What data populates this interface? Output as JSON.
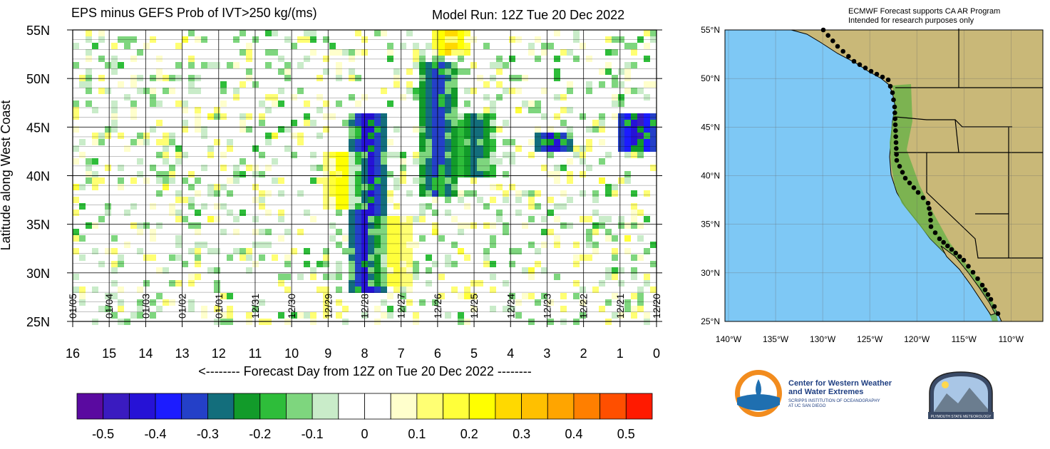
{
  "header": {
    "title": "EPS minus GEFS Prob of IVT>250 kg/(ms)",
    "model_run": "Model Run: 12Z Tue 20 Dec 2022"
  },
  "chart_data": {
    "type": "heatmap",
    "title": "EPS minus GEFS Prob of IVT>250 kg/(ms)",
    "xlabel": "<-------- Forecast Day from 12Z on Tue 20 Dec 2022 --------",
    "ylabel": "Latitude along West Coast",
    "x_ticks": [
      "16",
      "15",
      "14",
      "13",
      "12",
      "11",
      "10",
      "9",
      "8",
      "7",
      "6",
      "5",
      "4",
      "3",
      "2",
      "1",
      "0"
    ],
    "xlim": [
      16,
      0
    ],
    "y_ticks": [
      "55N",
      "50N",
      "45N",
      "40N",
      "35N",
      "30N",
      "25N"
    ],
    "ylim": [
      25,
      55
    ],
    "date_labels": [
      "01/05",
      "01/04",
      "01/03",
      "01/02",
      "01/01",
      "12/31",
      "12/30",
      "12/29",
      "12/28",
      "12/27",
      "12/26",
      "12/25",
      "12/24",
      "12/23",
      "12/22",
      "12/21",
      "12/20"
    ],
    "colorbar": {
      "labels": [
        "-0.5",
        "-0.4",
        "-0.3",
        "-0.2",
        "-0.1",
        "0",
        "0.1",
        "0.2",
        "0.3",
        "0.4",
        "0.5"
      ],
      "colors": [
        "#5a0aa0",
        "#3a1bc0",
        "#2612d6",
        "#1c1cff",
        "#2440c8",
        "#136e7c",
        "#129b2a",
        "#2ebd3a",
        "#7ed67e",
        "#c9ecc9",
        "#ffffff",
        "#ffffff",
        "#ffffcc",
        "#ffff73",
        "#ffff3a",
        "#ffff00",
        "#ffd900",
        "#ffc000",
        "#ffa500",
        "#ff7f00",
        "#ff4f00",
        "#ff1a00"
      ]
    },
    "features": [
      {
        "day": 8.0,
        "lat_from": 28,
        "lat_to": 47,
        "value": -0.45
      },
      {
        "day": 6.1,
        "lat_from": 38,
        "lat_to": 52,
        "value": -0.35
      },
      {
        "day": 5.0,
        "lat_from": 40,
        "lat_to": 47,
        "value": -0.3
      },
      {
        "day": 2.9,
        "lat_from": 43,
        "lat_to": 45,
        "value": -0.45
      },
      {
        "day": 0.6,
        "lat_from": 43,
        "lat_to": 47,
        "value": -0.5
      },
      {
        "day": 8.6,
        "lat_from": 37,
        "lat_to": 43,
        "value": 0.25
      },
      {
        "day": 7.4,
        "lat_from": 29,
        "lat_to": 36,
        "value": 0.2
      },
      {
        "day": 5.7,
        "lat_from": 53,
        "lat_to": 55,
        "value": 0.3
      }
    ]
  },
  "map": {
    "note_line1": "ECMWF Forecast supports CA AR Program",
    "note_line2": "Intended for research purposes only",
    "lat_labels": [
      "55°N",
      "50°N",
      "45°N",
      "40°N",
      "35°N",
      "30°N",
      "25°N"
    ],
    "lon_labels": [
      "140°W",
      "135°W",
      "130°W",
      "125°W",
      "120°W",
      "115°W",
      "110°W"
    ],
    "ocean_color": "#7ec8f5",
    "land_color": "#c9b878"
  },
  "logos": {
    "cw3e_line1": "Center for Western Weather",
    "cw3e_line2": "and Water Extremes",
    "cw3e_sub1": "SCRIPPS INSTITUTION OF OCEANOGRAPHY",
    "cw3e_sub2": "AT UC SAN DIEGO",
    "psu": "PLYMOUTH STATE METEOROLOGY"
  }
}
